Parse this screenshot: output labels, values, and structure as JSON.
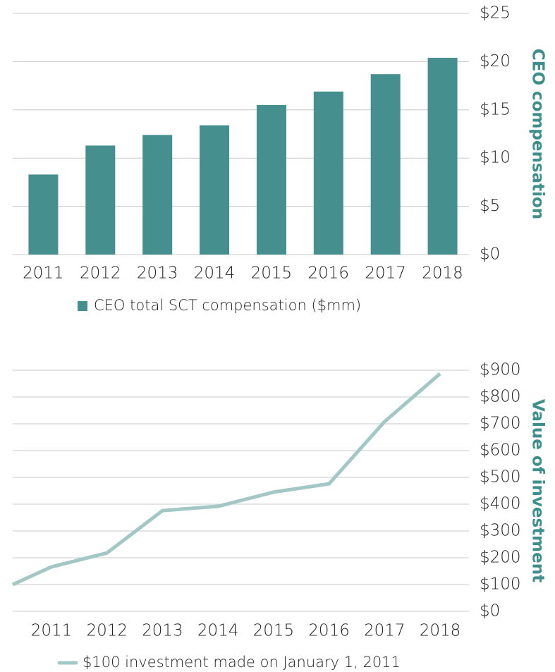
{
  "chart_data": [
    {
      "type": "bar",
      "categories": [
        "2011",
        "2012",
        "2013",
        "2014",
        "2015",
        "2016",
        "2017",
        "2018"
      ],
      "series": [
        {
          "name": "CEO total SCT compensation ($mm)",
          "color": "#458f8f",
          "values": [
            8.3,
            11.3,
            12.4,
            13.4,
            15.5,
            16.9,
            18.7,
            20.4
          ]
        }
      ],
      "y_axis_label": "CEO compensation",
      "ylim": [
        0,
        25
      ],
      "yticks": [
        {
          "value": 0,
          "label": "$0"
        },
        {
          "value": 5,
          "label": "$5"
        },
        {
          "value": 10,
          "label": "$10"
        },
        {
          "value": 15,
          "label": "$15"
        },
        {
          "value": 20,
          "label": "$20"
        },
        {
          "value": 25,
          "label": "$25"
        }
      ],
      "grid": true
    },
    {
      "type": "line",
      "categories": [
        null,
        "2011",
        "2012",
        "2013",
        "2014",
        "2015",
        "2016",
        "2017",
        "2018"
      ],
      "series": [
        {
          "name": "$100 investment made on January 1, 2011",
          "color": "#a3c7c4",
          "values": [
            100,
            166,
            218,
            376,
            392,
            445,
            476,
            708,
            887
          ]
        }
      ],
      "y_axis_label": "Value of investment",
      "ylim": [
        0,
        900
      ],
      "yticks": [
        {
          "value": 0,
          "label": "$0"
        },
        {
          "value": 100,
          "label": "$100"
        },
        {
          "value": 200,
          "label": "$200"
        },
        {
          "value": 300,
          "label": "$300"
        },
        {
          "value": 400,
          "label": "$400"
        },
        {
          "value": 500,
          "label": "$500"
        },
        {
          "value": 600,
          "label": "$600"
        },
        {
          "value": 700,
          "label": "$700"
        },
        {
          "value": 800,
          "label": "$800"
        },
        {
          "value": 900,
          "label": "$900"
        }
      ],
      "grid": true
    }
  ]
}
